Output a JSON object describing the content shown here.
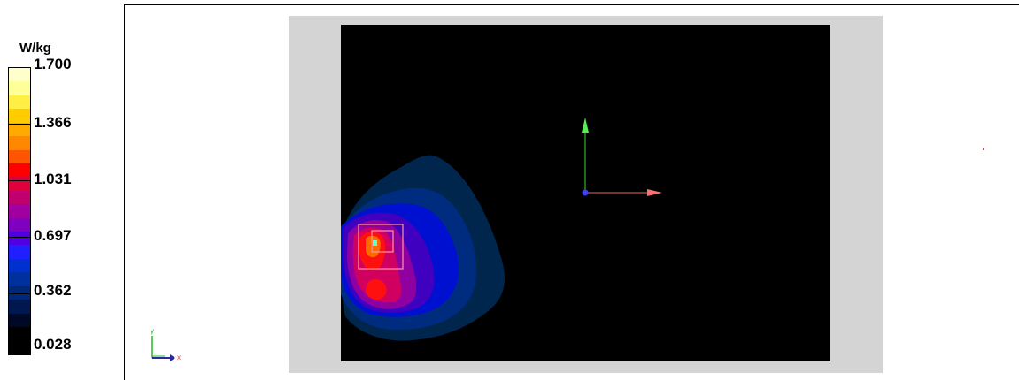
{
  "legend": {
    "unit": "W/kg",
    "ticks": [
      "1.700",
      "1.366",
      "1.031",
      "0.697",
      "0.362",
      "0.028"
    ],
    "colors": [
      "#ffffcc",
      "#ffff99",
      "#ffee44",
      "#ffcc00",
      "#ffaa00",
      "#ff8800",
      "#ff5500",
      "#ff0000",
      "#e0003c",
      "#c0006e",
      "#a000a0",
      "#8000c0",
      "#5000e0",
      "#2020ff",
      "#0030d0",
      "#0030a0",
      "#002878",
      "#001850",
      "#000828",
      "#000000",
      "#000000"
    ]
  },
  "axes": {
    "x_label": "x",
    "y_label": "y"
  },
  "colors": {
    "panel_gray": "#d4d4d4",
    "plot_background": "#000000",
    "axis_x": "#ff5a5a",
    "axis_y": "#33dd33",
    "axis_z": "#4040ff",
    "marker_box": "#ff9999"
  }
}
